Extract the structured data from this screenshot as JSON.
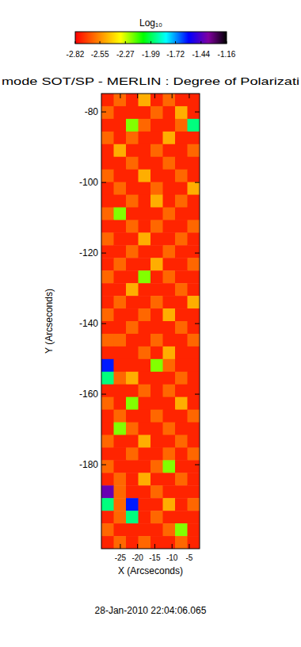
{
  "chart_data": {
    "type": "heatmap",
    "title": "mode SOT/SP - MERLIN : Degree of Polarizati",
    "colorbar_title": "Log₁₀",
    "x_label": "X (Arcseconds)",
    "y_label": "Y (Arcseconds)",
    "annotation": "28-Jan-2010 22:04:06.065",
    "xlim": [
      -30.5,
      -2
    ],
    "ylim": [
      -203.8,
      -74.8
    ],
    "xticks": [
      -25,
      -20,
      -15,
      -10,
      -5
    ],
    "yticks": [
      -80,
      -100,
      -120,
      -140,
      -160,
      -180
    ],
    "colorbar_range": [
      -2.82,
      -1.16
    ],
    "colorbar_ticks": [
      -2.82,
      -2.55,
      -2.27,
      -1.99,
      -1.72,
      -1.44,
      -1.16
    ],
    "cells": [
      [
        -2.75,
        -2.62,
        -2.75,
        -2.48,
        -2.75,
        -2.62,
        -2.75,
        -2.75
      ],
      [
        -2.62,
        -2.75,
        -2.75,
        -2.75,
        -2.62,
        -2.75,
        -2.48,
        -2.75
      ],
      [
        -2.75,
        -2.75,
        -2.2,
        -2.62,
        -2.75,
        -2.75,
        -2.62,
        -1.95
      ],
      [
        -2.62,
        -2.75,
        -2.62,
        -2.75,
        -2.75,
        -2.48,
        -2.75,
        -2.75
      ],
      [
        -2.75,
        -2.48,
        -2.75,
        -2.75,
        -2.62,
        -2.75,
        -2.75,
        -2.62
      ],
      [
        -2.75,
        -2.75,
        -2.62,
        -2.75,
        -2.75,
        -2.62,
        -2.75,
        -2.75
      ],
      [
        -2.62,
        -2.75,
        -2.75,
        -2.48,
        -2.75,
        -2.75,
        -2.62,
        -2.75
      ],
      [
        -2.75,
        -2.62,
        -2.75,
        -2.75,
        -2.62,
        -2.75,
        -2.75,
        -2.48
      ],
      [
        -2.75,
        -2.75,
        -2.62,
        -2.75,
        -2.48,
        -2.75,
        -2.62,
        -2.75
      ],
      [
        -2.62,
        -2.2,
        -2.75,
        -2.75,
        -2.75,
        -2.62,
        -2.75,
        -2.75
      ],
      [
        -2.75,
        -2.75,
        -2.62,
        -2.75,
        -2.62,
        -2.75,
        -2.75,
        -2.62
      ],
      [
        -2.62,
        -2.75,
        -2.75,
        -2.48,
        -2.75,
        -2.75,
        -2.62,
        -2.75
      ],
      [
        -2.75,
        -2.75,
        -2.62,
        -2.75,
        -2.75,
        -2.62,
        -2.75,
        -2.75
      ],
      [
        -2.75,
        -2.62,
        -2.75,
        -2.75,
        -2.48,
        -2.75,
        -2.75,
        -2.62
      ],
      [
        -2.62,
        -2.75,
        -2.75,
        -2.2,
        -2.75,
        -2.62,
        -2.75,
        -2.75
      ],
      [
        -2.75,
        -2.75,
        -2.48,
        -2.75,
        -2.75,
        -2.75,
        -2.62,
        -2.75
      ],
      [
        -2.75,
        -2.62,
        -2.75,
        -2.75,
        -2.62,
        -2.75,
        -2.75,
        -2.48
      ],
      [
        -2.62,
        -2.75,
        -2.75,
        -2.62,
        -2.75,
        -2.48,
        -2.75,
        -2.75
      ],
      [
        -2.75,
        -2.75,
        -2.62,
        -2.75,
        -2.75,
        -2.75,
        -2.62,
        -2.75
      ],
      [
        -2.62,
        -2.62,
        -2.75,
        -2.75,
        -2.62,
        -2.75,
        -2.75,
        -2.62
      ],
      [
        -2.75,
        -2.75,
        -2.75,
        -2.62,
        -2.75,
        -2.48,
        -2.75,
        -2.75
      ],
      [
        -1.6,
        -2.75,
        -2.75,
        -2.75,
        -2.2,
        -2.62,
        -2.75,
        -2.75
      ],
      [
        -1.95,
        -2.62,
        -2.48,
        -2.75,
        -2.75,
        -2.75,
        -2.62,
        -2.75
      ],
      [
        -2.75,
        -2.75,
        -2.75,
        -2.62,
        -2.75,
        -2.62,
        -2.75,
        -2.75
      ],
      [
        -2.62,
        -2.75,
        -2.2,
        -2.75,
        -2.75,
        -2.75,
        -2.48,
        -2.75
      ],
      [
        -2.75,
        -2.62,
        -2.75,
        -2.75,
        -2.62,
        -2.75,
        -2.75,
        -2.62
      ],
      [
        -2.75,
        -2.2,
        -2.62,
        -2.75,
        -2.75,
        -2.62,
        -2.75,
        -2.75
      ],
      [
        -2.62,
        -2.75,
        -2.75,
        -2.48,
        -2.75,
        -2.75,
        -2.62,
        -2.75
      ],
      [
        -2.75,
        -2.75,
        -2.62,
        -2.75,
        -2.75,
        -2.62,
        -2.75,
        -2.62
      ],
      [
        -2.62,
        -2.75,
        -2.75,
        -2.75,
        -2.62,
        -2.2,
        -2.75,
        -2.75
      ],
      [
        -2.75,
        -2.62,
        -2.75,
        -2.48,
        -2.75,
        -2.75,
        -2.62,
        -2.75
      ],
      [
        -1.4,
        -2.62,
        -2.75,
        -2.75,
        -2.62,
        -2.75,
        -2.75,
        -2.75
      ],
      [
        -1.95,
        -2.62,
        -1.6,
        -2.75,
        -2.75,
        -2.48,
        -2.75,
        -2.62
      ],
      [
        -2.75,
        -2.62,
        -1.95,
        -2.75,
        -2.62,
        -2.75,
        -2.75,
        -2.75
      ],
      [
        -2.62,
        -2.75,
        -2.75,
        -2.75,
        -2.75,
        -2.62,
        -2.2,
        -2.75
      ],
      [
        -2.75,
        -2.62,
        -2.75,
        -2.62,
        -2.75,
        -2.75,
        -2.62,
        -2.75
      ]
    ]
  }
}
